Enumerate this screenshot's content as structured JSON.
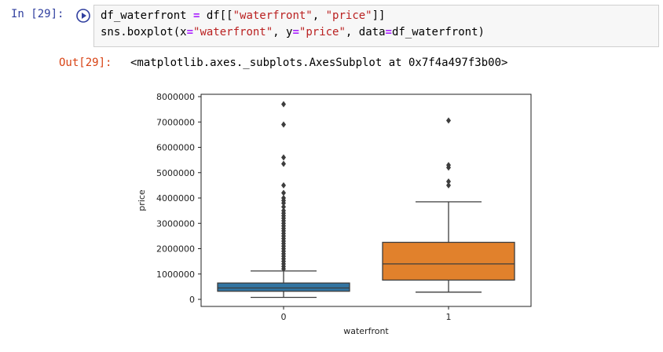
{
  "cell": {
    "in_prompt": "In [29]:",
    "out_prompt": "Out[29]:",
    "run_icon": "play-circle-icon",
    "code": {
      "line1": {
        "var": "df_waterfront",
        "eq": " = ",
        "a": "df[[",
        "s1": "\"waterfront\"",
        "c": ", ",
        "s2": "\"price\"",
        "b": "]]"
      },
      "line2": {
        "fn": "sns.boxplot(x",
        "e1": "=",
        "s1": "\"waterfront\"",
        "m1": ", y",
        "e2": "=",
        "s2": "\"price\"",
        "m2": ", data",
        "e3": "=",
        "arg": "df_waterfront)"
      }
    },
    "output_text": "<matplotlib.axes._subplots.AxesSubplot at 0x7f4a497f3b00>"
  },
  "chart_data": {
    "type": "box",
    "categories": [
      "0",
      "1"
    ],
    "xlabel": "waterfront",
    "ylabel": "price",
    "ylim": [
      0,
      8000000
    ],
    "yticks": [
      "0",
      "1000000",
      "2000000",
      "3000000",
      "4000000",
      "5000000",
      "6000000",
      "7000000",
      "8000000"
    ],
    "boxes": [
      {
        "category": "0",
        "color": "#3274a1",
        "whisker_low": 78000,
        "q1": 320000,
        "median": 450000,
        "q3": 645000,
        "whisker_high": 1120000,
        "outliers": [
          7700000,
          6900000,
          5600000,
          5350000,
          4500000,
          4200000,
          4000000,
          3900000,
          3800000,
          3650000,
          3500000,
          3400000,
          3300000,
          3200000,
          3100000,
          3000000,
          2900000,
          2800000,
          2700000,
          2600000,
          2500000,
          2400000,
          2300000,
          2200000,
          2100000,
          2000000,
          1900000,
          1800000,
          1700000,
          1600000,
          1500000,
          1400000,
          1300000,
          1200000
        ]
      },
      {
        "category": "1",
        "color": "#e1812c",
        "whisker_low": 285000,
        "q1": 760000,
        "median": 1400000,
        "q3": 2250000,
        "whisker_high": 3850000,
        "outliers": [
          7060000,
          5300000,
          5200000,
          4650000,
          4500000
        ]
      }
    ]
  }
}
